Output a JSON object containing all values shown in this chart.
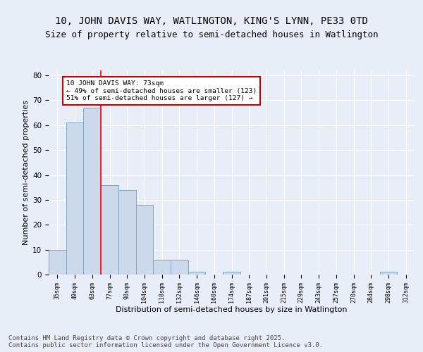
{
  "title1": "10, JOHN DAVIS WAY, WATLINGTON, KING'S LYNN, PE33 0TD",
  "title2": "Size of property relative to semi-detached houses in Watlington",
  "xlabel": "Distribution of semi-detached houses by size in Watlington",
  "ylabel": "Number of semi-detached properties",
  "categories": [
    "35sqm",
    "49sqm",
    "63sqm",
    "77sqm",
    "90sqm",
    "104sqm",
    "118sqm",
    "132sqm",
    "146sqm",
    "160sqm",
    "174sqm",
    "187sqm",
    "201sqm",
    "215sqm",
    "229sqm",
    "243sqm",
    "257sqm",
    "270sqm",
    "284sqm",
    "298sqm",
    "312sqm"
  ],
  "values": [
    10,
    61,
    67,
    36,
    34,
    28,
    6,
    6,
    1,
    0,
    1,
    0,
    0,
    0,
    0,
    0,
    0,
    0,
    0,
    1,
    0
  ],
  "bar_color": "#ccd9ea",
  "bar_edge_color": "#7aaac8",
  "red_line_index": 2.5,
  "annotation_text": "10 JOHN DAVIS WAY: 73sqm\n← 49% of semi-detached houses are smaller (123)\n51% of semi-detached houses are larger (127) →",
  "annotation_box_color": "#ffffff",
  "annotation_box_edge": "#cc0000",
  "ylim": [
    0,
    82
  ],
  "yticks": [
    0,
    10,
    20,
    30,
    40,
    50,
    60,
    70,
    80
  ],
  "footer": "Contains HM Land Registry data © Crown copyright and database right 2025.\nContains public sector information licensed under the Open Government Licence v3.0.",
  "bg_color": "#e8eef8",
  "plot_bg_color": "#e8eef8",
  "grid_color": "#ffffff",
  "title1_fontsize": 10,
  "title2_fontsize": 9,
  "xlabel_fontsize": 8,
  "ylabel_fontsize": 8,
  "footer_fontsize": 6.5
}
